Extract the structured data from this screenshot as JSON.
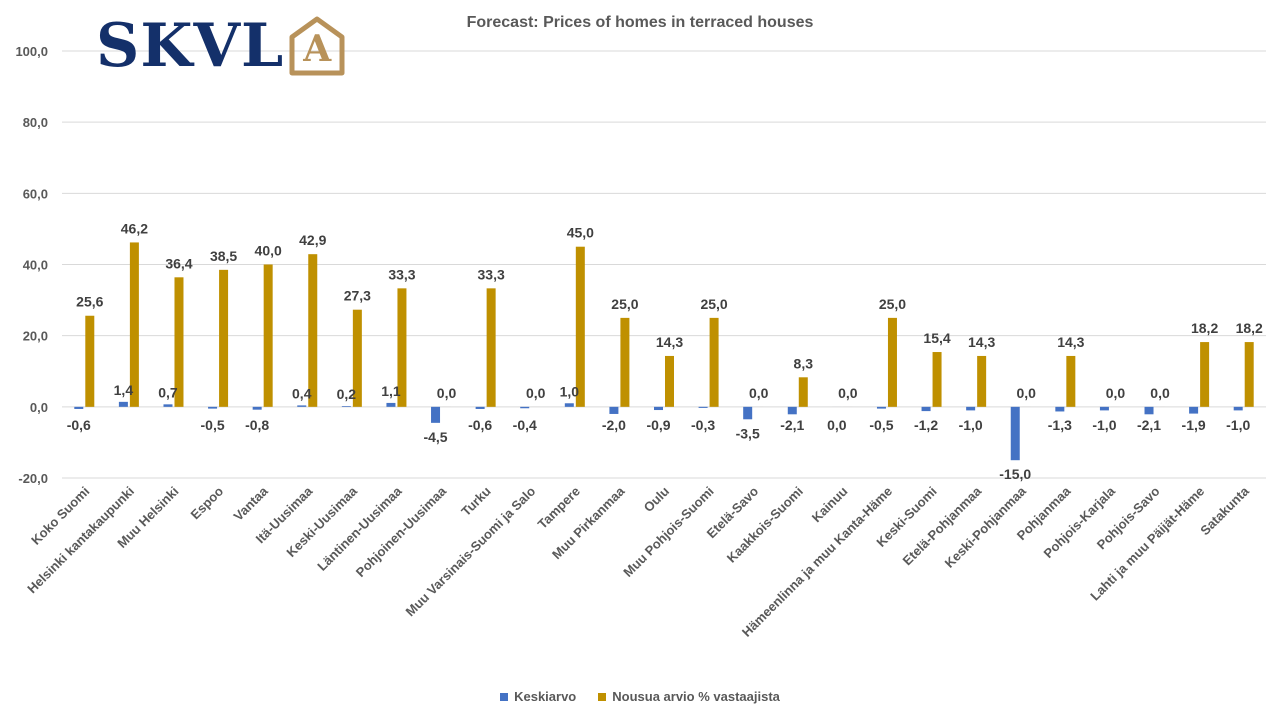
{
  "logo": {
    "text": "SKVL",
    "letter": "A",
    "text_color": "#14306a",
    "mark_color": "#b8925a"
  },
  "chart_data": {
    "type": "bar",
    "title": "Forecast: Prices of homes in terraced houses",
    "xlabel": "",
    "ylabel": "",
    "ylim": [
      -20,
      100
    ],
    "yticks": [
      -20,
      0,
      20,
      40,
      60,
      80,
      100
    ],
    "ytick_labels": [
      "-20,0",
      "0,0",
      "20,0",
      "40,0",
      "60,0",
      "80,0",
      "100,0"
    ],
    "grid": true,
    "legend_position": "bottom",
    "categories": [
      "Koko Suomi",
      "Helsinki kantakaupunki",
      "Muu Helsinki",
      "Espoo",
      "Vantaa",
      "Itä-Uusimaa",
      "Keski-Uusimaa",
      "Läntinen-Uusimaa",
      "Pohjoinen-Uusimaa",
      "Turku",
      "Muu Varsinais-Suomi ja Salo",
      "Tampere",
      "Muu Pirkanmaa",
      "Oulu",
      "Muu Pohjois-Suomi",
      "Etelä-Savo",
      "Kaakkois-Suomi",
      "Kainuu",
      "Hämeenlinna ja muu Kanta-Häme",
      "Keski-Suomi",
      "Etelä-Pohjanmaa",
      "Keski-Pohjanmaa",
      "Pohjanmaa",
      "Pohjois-Karjala",
      "Pohjois-Savo",
      "Lahti ja muu Päijät-Häme",
      "Satakunta"
    ],
    "series": [
      {
        "name": "Keskiarvo",
        "color": "#4472c4",
        "values": [
          -0.6,
          1.4,
          0.7,
          -0.5,
          -0.8,
          0.4,
          0.2,
          1.1,
          -4.5,
          -0.6,
          -0.4,
          1.0,
          -2.0,
          -0.9,
          -0.3,
          -3.5,
          -2.1,
          0.0,
          -0.5,
          -1.2,
          -1.0,
          -15.0,
          -1.3,
          -1.0,
          -2.1,
          -1.9,
          -1.0
        ],
        "labels": [
          "-0,6",
          "1,4",
          "0,7",
          "-0,5",
          "-0,8",
          "0,4",
          "0,2",
          "1,1",
          "-4,5",
          "-0,6",
          "-0,4",
          "1,0",
          "-2,0",
          "-0,9",
          "-0,3",
          "-3,5",
          "-2,1",
          "0,0",
          "-0,5",
          "-1,2",
          "-1,0",
          "-15,0",
          "-1,3",
          "-1,0",
          "-2,1",
          "-1,9",
          "-1,0"
        ]
      },
      {
        "name": "Nousua arvio % vastaajista",
        "color": "#bf9000",
        "values": [
          25.6,
          46.2,
          36.4,
          38.5,
          40.0,
          42.9,
          27.3,
          33.3,
          0.0,
          33.3,
          0.0,
          45.0,
          25.0,
          14.3,
          25.0,
          0.0,
          8.3,
          0.0,
          25.0,
          15.4,
          14.3,
          0.0,
          14.3,
          0.0,
          0.0,
          18.2,
          18.2
        ],
        "labels": [
          "25,6",
          "46,2",
          "36,4",
          "38,5",
          "40,0",
          "42,9",
          "27,3",
          "33,3",
          "0,0",
          "33,3",
          "0,0",
          "45,0",
          "25,0",
          "14,3",
          "25,0",
          "0,0",
          "8,3",
          "0,0",
          "25,0",
          "15,4",
          "14,3",
          "0,0",
          "14,3",
          "0,0",
          "0,0",
          "18,2",
          "18,2"
        ]
      }
    ]
  }
}
